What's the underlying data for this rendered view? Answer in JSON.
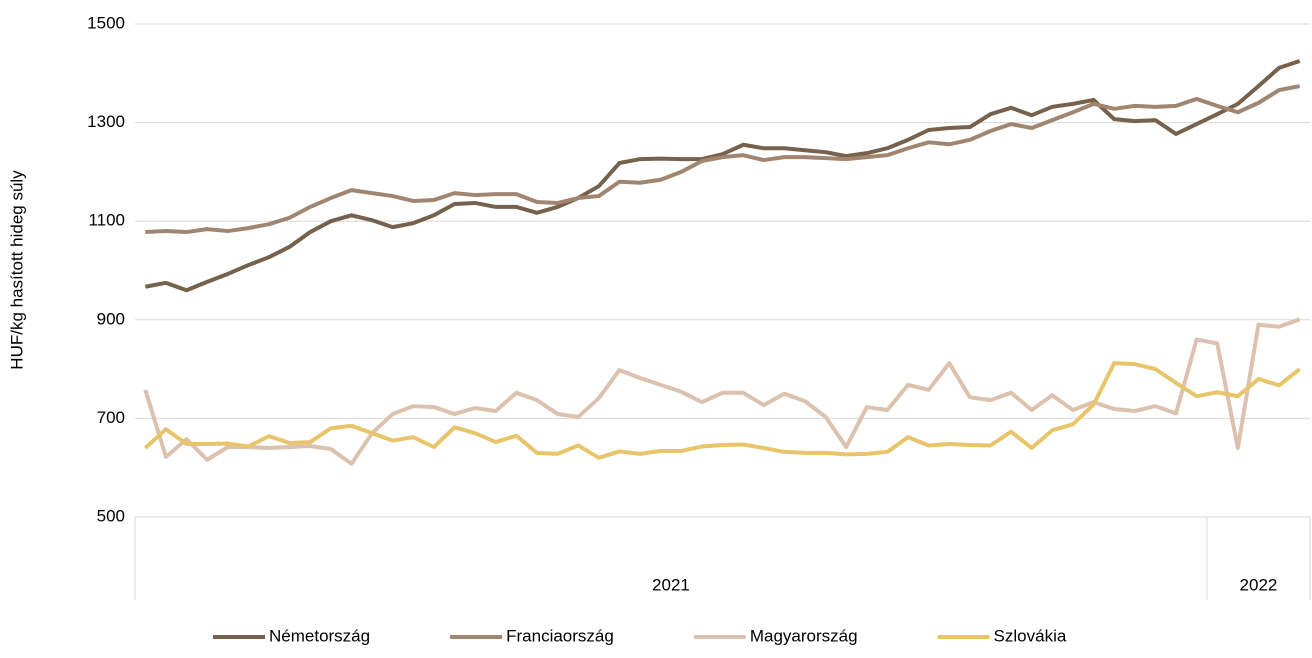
{
  "chart_data": {
    "type": "line",
    "y_label": "HUF/kg hasított hideg súly",
    "categories": [
      null,
      null,
      null,
      null,
      null,
      null,
      null,
      null,
      null,
      null,
      null,
      null,
      null,
      null,
      null,
      null,
      null,
      null,
      null,
      null,
      null,
      null,
      null,
      null,
      null,
      null,
      null,
      null,
      null,
      null,
      null,
      null,
      null,
      null,
      null,
      null,
      null,
      null,
      null,
      null,
      null,
      null,
      null,
      null,
      null,
      null,
      null,
      null,
      null,
      null,
      null,
      null,
      null,
      null,
      null,
      null,
      null
    ],
    "groups": [
      {
        "label": "2021",
        "count": 52
      },
      {
        "label": "2022",
        "count": 5
      }
    ],
    "ylim": [
      500,
      1500
    ],
    "yticks": [
      500,
      700,
      900,
      1100,
      1300,
      1500
    ],
    "grid": true,
    "legend": "bottom",
    "series": [
      {
        "name": "Németország",
        "color": "#76614c",
        "values": [
          967,
          975,
          960,
          977,
          993,
          1011,
          1027,
          1048,
          1078,
          1100,
          1112,
          1102,
          1088,
          1096,
          1112,
          1135,
          1137,
          1129,
          1129,
          1117,
          1129,
          1147,
          1171,
          1218,
          1226,
          1227,
          1226,
          1226,
          1236,
          1255,
          1248,
          1248,
          1244,
          1240,
          1232,
          1238,
          1248,
          1265,
          1285,
          1289,
          1291,
          1317,
          1330,
          1315,
          1332,
          1338,
          1346,
          1307,
          1303,
          1305,
          1277,
          1297,
          1317,
          1338,
          1374,
          1411,
          1425
        ]
      },
      {
        "name": "Franciaország",
        "color": "#a08670",
        "values": [
          1078,
          1080,
          1078,
          1084,
          1080,
          1086,
          1094,
          1107,
          1129,
          1147,
          1163,
          1157,
          1151,
          1141,
          1143,
          1157,
          1153,
          1155,
          1155,
          1139,
          1137,
          1147,
          1151,
          1180,
          1178,
          1184,
          1200,
          1222,
          1230,
          1234,
          1224,
          1230,
          1230,
          1228,
          1226,
          1230,
          1234,
          1248,
          1260,
          1256,
          1265,
          1283,
          1297,
          1289,
          1305,
          1321,
          1338,
          1328,
          1334,
          1332,
          1334,
          1348,
          1334,
          1321,
          1340,
          1366,
          1374
        ]
      },
      {
        "name": "Magyarország",
        "color": "#dcc1ae",
        "values": [
          758,
          622,
          658,
          616,
          642,
          642,
          640,
          642,
          644,
          638,
          608,
          670,
          709,
          725,
          723,
          709,
          721,
          715,
          752,
          737,
          709,
          703,
          741,
          798,
          782,
          768,
          754,
          733,
          752,
          752,
          727,
          750,
          735,
          703,
          642,
          723,
          717,
          768,
          758,
          812,
          743,
          737,
          752,
          717,
          747,
          717,
          733,
          719,
          715,
          725,
          710,
          860,
          852,
          640,
          890,
          886,
          901
        ]
      },
      {
        "name": "Szlovákia",
        "color": "#e8c46a",
        "values": [
          640,
          678,
          648,
          648,
          649,
          643,
          664,
          650,
          652,
          680,
          685,
          670,
          655,
          662,
          642,
          682,
          670,
          652,
          665,
          630,
          628,
          645,
          620,
          633,
          628,
          634,
          634,
          643,
          646,
          647,
          640,
          632,
          630,
          630,
          627,
          628,
          632,
          662,
          645,
          648,
          646,
          645,
          673,
          640,
          676,
          688,
          728,
          812,
          810,
          800,
          772,
          745,
          753,
          745,
          780,
          767,
          800
        ]
      }
    ]
  }
}
